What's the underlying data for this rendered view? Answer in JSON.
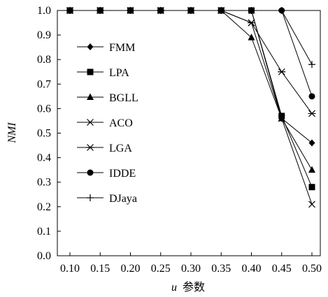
{
  "chart_data": {
    "type": "line",
    "x": [
      0.1,
      0.15,
      0.2,
      0.25,
      0.3,
      0.35,
      0.4,
      0.45,
      0.5
    ],
    "x_tick_labels": [
      "0.10",
      "0.15",
      "0.20",
      "0.25",
      "0.30",
      "0.35",
      "0.40",
      "0.45",
      "0.50"
    ],
    "y_ticks": [
      0.0,
      0.1,
      0.2,
      0.3,
      0.4,
      0.5,
      0.6,
      0.7,
      0.8,
      0.9,
      1.0
    ],
    "y_tick_labels": [
      "0.0",
      "0.1",
      "0.2",
      "0.3",
      "0.4",
      "0.5",
      "0.6",
      "0.7",
      "0.8",
      "0.9",
      "1.0"
    ],
    "ylim": [
      0.0,
      1.0
    ],
    "xlabel_var": "u",
    "xlabel_text": "参数",
    "ylabel": "NMI",
    "grid": false,
    "legend_placement": "left",
    "series": [
      {
        "name": "FMM",
        "marker": "diamond",
        "values": [
          1.0,
          1.0,
          1.0,
          1.0,
          1.0,
          1.0,
          1.0,
          0.56,
          0.46
        ]
      },
      {
        "name": "LPA",
        "marker": "square",
        "values": [
          1.0,
          1.0,
          1.0,
          1.0,
          1.0,
          1.0,
          1.0,
          0.57,
          0.28
        ]
      },
      {
        "name": "BGLL",
        "marker": "triangle",
        "values": [
          1.0,
          1.0,
          1.0,
          1.0,
          1.0,
          1.0,
          0.89,
          0.56,
          0.35
        ]
      },
      {
        "name": "ACO",
        "marker": "x",
        "values": [
          1.0,
          1.0,
          1.0,
          1.0,
          1.0,
          1.0,
          0.95,
          0.56,
          0.21
        ]
      },
      {
        "name": "LGA",
        "marker": "asterisk",
        "values": [
          1.0,
          1.0,
          1.0,
          1.0,
          1.0,
          1.0,
          0.95,
          0.75,
          0.58
        ]
      },
      {
        "name": "IDDE",
        "marker": "circle",
        "values": [
          1.0,
          1.0,
          1.0,
          1.0,
          1.0,
          1.0,
          1.0,
          1.0,
          0.65
        ]
      },
      {
        "name": "DJaya",
        "marker": "plus",
        "values": [
          1.0,
          1.0,
          1.0,
          1.0,
          1.0,
          1.0,
          1.0,
          1.0,
          0.78
        ]
      }
    ]
  }
}
